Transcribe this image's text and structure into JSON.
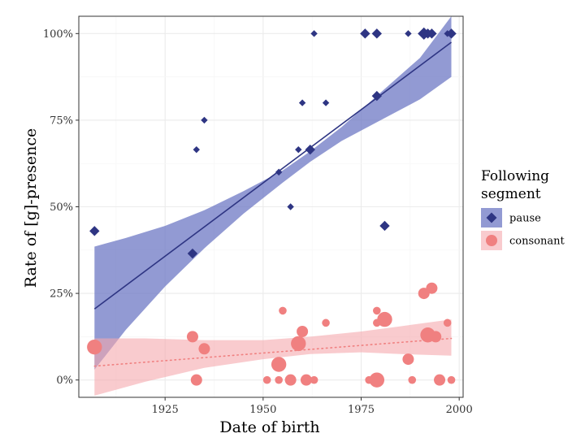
{
  "chart_data": {
    "type": "scatter",
    "xlabel": "Date of birth",
    "ylabel": "Rate of [g]-presence",
    "xlim": [
      1903,
      2001
    ],
    "ylim": [
      -0.05,
      1.05
    ],
    "x_ticks": [
      1925,
      1950,
      1975,
      2000
    ],
    "x_tick_labels": [
      "1925",
      "1950",
      "1975",
      "2000"
    ],
    "y_ticks": [
      0,
      0.25,
      0.5,
      0.75,
      1.0
    ],
    "y_tick_labels": [
      "0%",
      "25%",
      "50%",
      "75%",
      "100%"
    ],
    "grid": true,
    "legend": {
      "title_lines": [
        "Following",
        "segment"
      ],
      "placement": "right"
    },
    "series": [
      {
        "name": "pause",
        "marker": "diamond",
        "color": "#2e3583",
        "band_color": "#6e78c4",
        "line_style": "solid",
        "points": [
          {
            "x": 1907,
            "y": 0.43,
            "size": 2
          },
          {
            "x": 1932,
            "y": 0.365,
            "size": 2
          },
          {
            "x": 1933,
            "y": 0.665,
            "size": 1
          },
          {
            "x": 1935,
            "y": 0.75,
            "size": 1
          },
          {
            "x": 1954,
            "y": 0.6,
            "size": 1
          },
          {
            "x": 1957,
            "y": 0.5,
            "size": 1
          },
          {
            "x": 1959,
            "y": 0.665,
            "size": 1
          },
          {
            "x": 1960,
            "y": 0.8,
            "size": 1
          },
          {
            "x": 1962,
            "y": 0.665,
            "size": 2
          },
          {
            "x": 1963,
            "y": 1.0,
            "size": 1
          },
          {
            "x": 1966,
            "y": 0.8,
            "size": 1
          },
          {
            "x": 1976,
            "y": 1.0,
            "size": 2
          },
          {
            "x": 1979,
            "y": 1.0,
            "size": 2
          },
          {
            "x": 1979,
            "y": 0.82,
            "size": 2
          },
          {
            "x": 1981,
            "y": 0.445,
            "size": 2
          },
          {
            "x": 1987,
            "y": 1.0,
            "size": 1
          },
          {
            "x": 1991,
            "y": 1.0,
            "size": 3
          },
          {
            "x": 1992,
            "y": 1.0,
            "size": 2
          },
          {
            "x": 1993,
            "y": 1.0,
            "size": 2
          },
          {
            "x": 1997,
            "y": 1.0,
            "size": 1
          },
          {
            "x": 1998,
            "y": 1.0,
            "size": 2
          }
        ],
        "fit": {
          "x": [
            1907,
            1998
          ],
          "y": [
            0.205,
            0.975
          ]
        },
        "ci_band": {
          "x": [
            1907,
            1915,
            1925,
            1935,
            1945,
            1955,
            1962,
            1970,
            1980,
            1990,
            1998
          ],
          "lower": [
            0.03,
            0.145,
            0.27,
            0.38,
            0.48,
            0.57,
            0.63,
            0.69,
            0.75,
            0.81,
            0.875
          ],
          "upper": [
            0.385,
            0.41,
            0.445,
            0.49,
            0.545,
            0.605,
            0.66,
            0.73,
            0.83,
            0.93,
            1.05
          ]
        }
      },
      {
        "name": "consonant",
        "marker": "circle",
        "color": "#f08080",
        "band_color": "#f5a8ae",
        "line_style": "dotted",
        "points": [
          {
            "x": 1907,
            "y": 0.095,
            "size": 3
          },
          {
            "x": 1932,
            "y": 0.125,
            "size": 2
          },
          {
            "x": 1933,
            "y": 0.0,
            "size": 2
          },
          {
            "x": 1935,
            "y": 0.09,
            "size": 2
          },
          {
            "x": 1951,
            "y": 0.0,
            "size": 1
          },
          {
            "x": 1954,
            "y": 0.045,
            "size": 3
          },
          {
            "x": 1954,
            "y": 0.0,
            "size": 1
          },
          {
            "x": 1955,
            "y": 0.2,
            "size": 1
          },
          {
            "x": 1957,
            "y": 0.0,
            "size": 2
          },
          {
            "x": 1959,
            "y": 0.105,
            "size": 3
          },
          {
            "x": 1960,
            "y": 0.14,
            "size": 2
          },
          {
            "x": 1961,
            "y": 0.0,
            "size": 2
          },
          {
            "x": 1963,
            "y": 0.0,
            "size": 1
          },
          {
            "x": 1966,
            "y": 0.165,
            "size": 1
          },
          {
            "x": 1977,
            "y": 0.0,
            "size": 1
          },
          {
            "x": 1979,
            "y": 0.2,
            "size": 1
          },
          {
            "x": 1979,
            "y": 0.165,
            "size": 1
          },
          {
            "x": 1979,
            "y": 0.0,
            "size": 3
          },
          {
            "x": 1981,
            "y": 0.175,
            "size": 3
          },
          {
            "x": 1987,
            "y": 0.06,
            "size": 2
          },
          {
            "x": 1988,
            "y": 0.0,
            "size": 1
          },
          {
            "x": 1991,
            "y": 0.25,
            "size": 2
          },
          {
            "x": 1992,
            "y": 0.13,
            "size": 3
          },
          {
            "x": 1993,
            "y": 0.265,
            "size": 2
          },
          {
            "x": 1994,
            "y": 0.125,
            "size": 2
          },
          {
            "x": 1995,
            "y": 0.0,
            "size": 2
          },
          {
            "x": 1997,
            "y": 0.165,
            "size": 1
          },
          {
            "x": 1998,
            "y": 0.0,
            "size": 1
          }
        ],
        "fit": {
          "x": [
            1907,
            1998
          ],
          "y": [
            0.04,
            0.12
          ]
        },
        "ci_band": {
          "x": [
            1907,
            1920,
            1935,
            1950,
            1962,
            1975,
            1985,
            1998
          ],
          "lower": [
            -0.045,
            -0.005,
            0.035,
            0.06,
            0.075,
            0.08,
            0.075,
            0.07
          ],
          "upper": [
            0.12,
            0.12,
            0.115,
            0.115,
            0.125,
            0.14,
            0.155,
            0.175
          ]
        }
      }
    ]
  }
}
